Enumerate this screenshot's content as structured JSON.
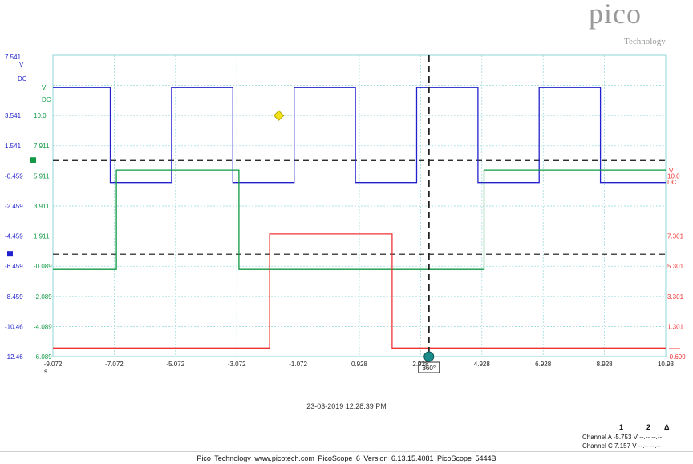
{
  "brand": {
    "name": "pico",
    "subtitle": "Technology"
  },
  "timestamp": "23-03-2019 12.28.39 PM",
  "footer": {
    "company": "Pico Technology",
    "url": "www.picotech.com",
    "software": "PicoScope 6 Version 6.13.15.4081",
    "device": "PicoScope 5444B"
  },
  "measurements": {
    "headers": [
      "1",
      "2",
      "Δ"
    ],
    "rows": [
      {
        "label": "Channel A",
        "v1": "-5.753 V",
        "v2": "--.--",
        "delta": "--.--"
      },
      {
        "label": "Channel C",
        "v1": "7.157 V",
        "v2": "--.--",
        "delta": "--.--"
      }
    ]
  },
  "trigger_label": "360°",
  "colors": {
    "channel_a": "#2222cc",
    "channel_b": "#119944",
    "channel_c": "#ee3333",
    "grid": "#8fd6d6",
    "cursor": "#222222",
    "marker": "#1a8a8a",
    "trigger": "#f2e21a"
  },
  "chart_data": {
    "type": "line",
    "x_unit": "s",
    "xlim": [
      -9.072,
      10.93
    ],
    "x_ticks": [
      "-9.072",
      "-7.072",
      "-5.072",
      "-3.072",
      "-1.072",
      "0.928",
      "2.928",
      "4.928",
      "6.928",
      "8.928",
      "10.93"
    ],
    "axes": [
      {
        "id": "A",
        "side": "left",
        "unit": "V",
        "coupling": "DC",
        "ylim": [
          -12.46,
          7.541
        ],
        "ticks": [
          "7.541",
          "3.541",
          "1.541",
          "-0.459",
          "-2.459",
          "-4.459",
          "-6.459",
          "-8.459",
          "-10.46",
          "-12.46"
        ]
      },
      {
        "id": "B",
        "side": "left",
        "unit": "V",
        "coupling": "DC",
        "ylim": [
          -6.089,
          13.911
        ],
        "ticks": [
          "10.0",
          "7.911",
          "5.911",
          "3.911",
          "1.911",
          "-0.089",
          "-2.089",
          "-4.089",
          "-6.089"
        ]
      },
      {
        "id": "C",
        "side": "right",
        "unit": "V",
        "coupling": "DC",
        "ylim": [
          -0.699,
          13.301
        ],
        "ticks": [
          "10.0",
          "7.301",
          "5.301",
          "3.301",
          "1.301",
          "-0.699"
        ]
      }
    ],
    "series": [
      {
        "axis": "A",
        "high": 5.4,
        "low": -0.9,
        "segments": [
          [
            -9.072,
            -7.2,
            1
          ],
          [
            -7.2,
            -5.2,
            0
          ],
          [
            -5.2,
            -3.2,
            1
          ],
          [
            -3.2,
            -1.2,
            0
          ],
          [
            -1.2,
            0.8,
            1
          ],
          [
            0.8,
            2.8,
            0
          ],
          [
            2.8,
            4.8,
            1
          ],
          [
            4.8,
            6.8,
            0
          ],
          [
            6.8,
            8.8,
            1
          ],
          [
            8.8,
            10.93,
            0
          ]
        ]
      },
      {
        "axis": "B",
        "high": 6.3,
        "low": -0.3,
        "segments": [
          [
            -9.072,
            -7.0,
            0
          ],
          [
            -7.0,
            -3.0,
            1
          ],
          [
            -3.0,
            5.0,
            0
          ],
          [
            5.0,
            10.93,
            1
          ]
        ]
      },
      {
        "axis": "C",
        "high": 5.0,
        "low": -0.3,
        "segments": [
          [
            -9.072,
            -2.0,
            0
          ],
          [
            -2.0,
            2.0,
            1
          ],
          [
            2.0,
            10.93,
            0
          ]
        ]
      }
    ],
    "threshold_lines": [
      {
        "axis": "A",
        "y": 0.56
      },
      {
        "axis": "A",
        "y": -5.66
      }
    ],
    "cursor_x": 3.2,
    "trigger_marker": {
      "x": -1.7,
      "axis": "A",
      "y": 3.541
    },
    "grid": true
  }
}
